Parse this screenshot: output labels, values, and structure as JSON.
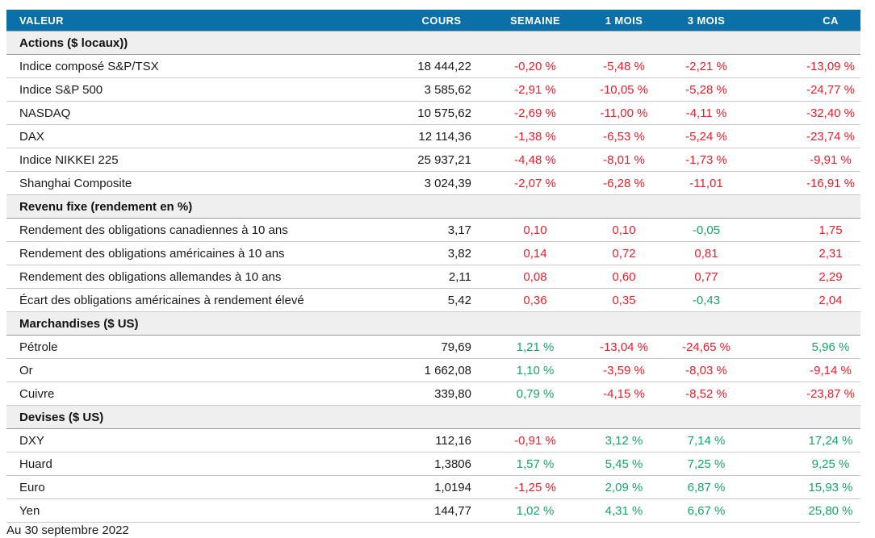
{
  "colors": {
    "header_bg": "#0c70a8",
    "header_text": "#ffffff",
    "negative": "#e9202c",
    "positive": "#17a566",
    "section_bg": "#efefef"
  },
  "chart_data": {
    "type": "table",
    "columns": [
      "VALEUR",
      "COURS",
      "SEMAINE",
      "1 MOIS",
      "3 MOIS",
      "CA"
    ],
    "sections": [
      {
        "label": "Actions ($ locaux))",
        "rows": [
          {
            "label": "Indice composé S&P/TSX",
            "cours": "18 444,22",
            "cells": [
              {
                "text": "-0,20 %",
                "tone": "neg"
              },
              {
                "text": "-5,48 %",
                "tone": "neg"
              },
              {
                "text": "-2,21 %",
                "tone": "neg"
              },
              {
                "text": "-13,09 %",
                "tone": "neg"
              }
            ]
          },
          {
            "label": "Indice S&P 500",
            "cours": "3 585,62",
            "cells": [
              {
                "text": "-2,91 %",
                "tone": "neg"
              },
              {
                "text": "-10,05 %",
                "tone": "neg"
              },
              {
                "text": "-5,28 %",
                "tone": "neg"
              },
              {
                "text": "-24,77 %",
                "tone": "neg"
              }
            ]
          },
          {
            "label": "NASDAQ",
            "cours": "10 575,62",
            "cells": [
              {
                "text": "-2,69 %",
                "tone": "neg"
              },
              {
                "text": "-11,00 %",
                "tone": "neg"
              },
              {
                "text": "-4,11 %",
                "tone": "neg"
              },
              {
                "text": "-32,40 %",
                "tone": "neg"
              }
            ]
          },
          {
            "label": "DAX",
            "cours": "12 114,36",
            "cells": [
              {
                "text": "-1,38 %",
                "tone": "neg"
              },
              {
                "text": "-6,53 %",
                "tone": "neg"
              },
              {
                "text": "-5,24 %",
                "tone": "neg"
              },
              {
                "text": "-23,74 %",
                "tone": "neg"
              }
            ]
          },
          {
            "label": "Indice NIKKEI 225",
            "cours": "25 937,21",
            "cells": [
              {
                "text": "-4,48 %",
                "tone": "neg"
              },
              {
                "text": "-8,01 %",
                "tone": "neg"
              },
              {
                "text": "-1,73 %",
                "tone": "neg"
              },
              {
                "text": "-9,91 %",
                "tone": "neg"
              }
            ]
          },
          {
            "label": "Shanghai Composite",
            "cours": "3 024,39",
            "cells": [
              {
                "text": "-2,07 %",
                "tone": "neg"
              },
              {
                "text": "-6,28 %",
                "tone": "neg"
              },
              {
                "text": "-11,01",
                "tone": "neg"
              },
              {
                "text": "-16,91 %",
                "tone": "neg"
              }
            ]
          }
        ]
      },
      {
        "label": "Revenu fixe (rendement en %)",
        "rows": [
          {
            "label": "Rendement des obligations canadiennes à 10 ans",
            "cours": "3,17",
            "cells": [
              {
                "text": "0,10",
                "tone": "neg"
              },
              {
                "text": "0,10",
                "tone": "neg"
              },
              {
                "text": "-0,05",
                "tone": "pos"
              },
              {
                "text": "1,75",
                "tone": "neg"
              }
            ]
          },
          {
            "label": "Rendement des obligations américaines à 10 ans",
            "cours": "3,82",
            "cells": [
              {
                "text": "0,14",
                "tone": "neg"
              },
              {
                "text": "0,72",
                "tone": "neg"
              },
              {
                "text": "0,81",
                "tone": "neg"
              },
              {
                "text": "2,31",
                "tone": "neg"
              }
            ]
          },
          {
            "label": "Rendement des obligations allemandes à 10 ans",
            "cours": "2,11",
            "cells": [
              {
                "text": "0,08",
                "tone": "neg"
              },
              {
                "text": "0,60",
                "tone": "neg"
              },
              {
                "text": "0,77",
                "tone": "neg"
              },
              {
                "text": "2,29",
                "tone": "neg"
              }
            ]
          },
          {
            "label": "Écart des obligations américaines à rendement élevé",
            "cours": "5,42",
            "cells": [
              {
                "text": "0,36",
                "tone": "neg"
              },
              {
                "text": "0,35",
                "tone": "neg"
              },
              {
                "text": "-0,43",
                "tone": "pos"
              },
              {
                "text": "2,04",
                "tone": "neg"
              }
            ]
          }
        ]
      },
      {
        "label": "Marchandises ($ US)",
        "rows": [
          {
            "label": "Pétrole",
            "cours": "79,69",
            "cells": [
              {
                "text": "1,21 %",
                "tone": "pos"
              },
              {
                "text": "-13,04 %",
                "tone": "neg"
              },
              {
                "text": "-24,65 %",
                "tone": "neg"
              },
              {
                "text": "5,96 %",
                "tone": "pos"
              }
            ]
          },
          {
            "label": "Or",
            "cours": "1 662,08",
            "cells": [
              {
                "text": "1,10 %",
                "tone": "pos"
              },
              {
                "text": "-3,59 %",
                "tone": "neg"
              },
              {
                "text": "-8,03 %",
                "tone": "neg"
              },
              {
                "text": "-9,14 %",
                "tone": "neg"
              }
            ]
          },
          {
            "label": "Cuivre",
            "cours": "339,80",
            "cells": [
              {
                "text": "0,79 %",
                "tone": "pos"
              },
              {
                "text": "-4,15 %",
                "tone": "neg"
              },
              {
                "text": "-8,52 %",
                "tone": "neg"
              },
              {
                "text": "-23,87 %",
                "tone": "neg"
              }
            ]
          }
        ]
      },
      {
        "label": "Devises ($ US)",
        "rows": [
          {
            "label": "DXY",
            "cours": "112,16",
            "cells": [
              {
                "text": "-0,91 %",
                "tone": "neg"
              },
              {
                "text": "3,12 %",
                "tone": "pos"
              },
              {
                "text": "7,14 %",
                "tone": "pos"
              },
              {
                "text": "17,24 %",
                "tone": "pos"
              }
            ]
          },
          {
            "label": "Huard",
            "cours": "1,3806",
            "cells": [
              {
                "text": "1,57 %",
                "tone": "pos"
              },
              {
                "text": "5,45 %",
                "tone": "pos"
              },
              {
                "text": "7,25 %",
                "tone": "pos"
              },
              {
                "text": "9,25 %",
                "tone": "pos"
              }
            ]
          },
          {
            "label": "Euro",
            "cours": "1,0194",
            "cells": [
              {
                "text": "-1,25 %",
                "tone": "neg"
              },
              {
                "text": "2,09 %",
                "tone": "pos"
              },
              {
                "text": "6,87 %",
                "tone": "pos"
              },
              {
                "text": "15,93 %",
                "tone": "pos"
              }
            ]
          },
          {
            "label": "Yen",
            "cours": "144,77",
            "cells": [
              {
                "text": "1,02 %",
                "tone": "pos"
              },
              {
                "text": "4,31 %",
                "tone": "pos"
              },
              {
                "text": "6,67 %",
                "tone": "pos"
              },
              {
                "text": "25,80 %",
                "tone": "pos"
              }
            ]
          }
        ]
      }
    ],
    "footnote": "Au 30 septembre 2022"
  }
}
